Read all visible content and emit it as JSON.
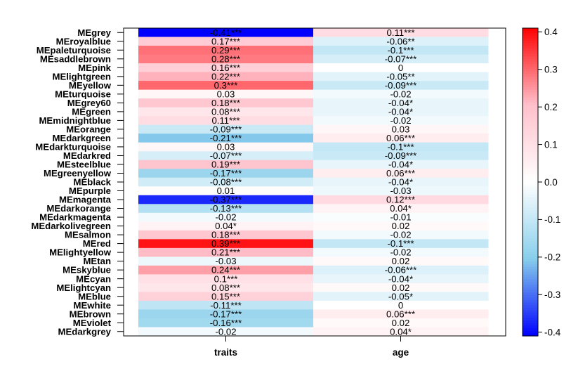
{
  "chart_data": {
    "type": "heatmap",
    "rows": [
      "MEgrey",
      "MEroyalblue",
      "MEpaleturquoise",
      "MEsaddlebrown",
      "MEpink",
      "MElightgreen",
      "MEyellow",
      "MEturquoise",
      "MEgrey60",
      "MEgreen",
      "MEmidnightblue",
      "MEorange",
      "MEdarkgreen",
      "MEdarkturquoise",
      "MEdarkred",
      "MEsteelblue",
      "MEgreenyellow",
      "MEblack",
      "MEpurple",
      "MEmagenta",
      "MEdarkorange",
      "MEdarkmagenta",
      "MEdarkolivegreen",
      "MEsalmon",
      "MEred",
      "MElightyellow",
      "MEtan",
      "MEskyblue",
      "MEcyan",
      "MElightcyan",
      "MEblue",
      "MEwhite",
      "MEbrown",
      "MEviolet",
      "MEdarkgrey"
    ],
    "columns": [
      "traits",
      "age"
    ],
    "values": [
      [
        -0.41,
        0.11
      ],
      [
        0.17,
        -0.06
      ],
      [
        0.29,
        -0.1
      ],
      [
        0.28,
        -0.07
      ],
      [
        0.16,
        0
      ],
      [
        0.22,
        -0.05
      ],
      [
        0.3,
        -0.09
      ],
      [
        0.03,
        -0.02
      ],
      [
        0.18,
        -0.04
      ],
      [
        0.08,
        -0.04
      ],
      [
        0.11,
        -0.02
      ],
      [
        -0.09,
        0.03
      ],
      [
        -0.21,
        0.06
      ],
      [
        0.03,
        -0.1
      ],
      [
        -0.07,
        -0.09
      ],
      [
        0.19,
        -0.04
      ],
      [
        -0.17,
        0.06
      ],
      [
        -0.08,
        -0.04
      ],
      [
        0.01,
        -0.03
      ],
      [
        -0.37,
        0.12
      ],
      [
        -0.13,
        0.04
      ],
      [
        -0.02,
        -0.01
      ],
      [
        0.04,
        0.02
      ],
      [
        0.18,
        -0.02
      ],
      [
        0.39,
        -0.1
      ],
      [
        0.21,
        -0.02
      ],
      [
        -0.03,
        0.02
      ],
      [
        0.24,
        -0.06
      ],
      [
        0.1,
        -0.04
      ],
      [
        0.08,
        0.02
      ],
      [
        0.15,
        -0.05
      ],
      [
        -0.11,
        0
      ],
      [
        -0.17,
        0.06
      ],
      [
        -0.16,
        0.02
      ],
      [
        -0.02,
        0.04
      ]
    ],
    "cell_labels": [
      [
        "-0.41***",
        "0.11***"
      ],
      [
        "0.17***",
        "-0.06**"
      ],
      [
        "0.29***",
        "-0.1***"
      ],
      [
        "0.28***",
        "-0.07***"
      ],
      [
        "0.16***",
        "0"
      ],
      [
        "0.22***",
        "-0.05**"
      ],
      [
        "0.3***",
        "-0.09***"
      ],
      [
        "0.03",
        "-0.02"
      ],
      [
        "0.18***",
        "-0.04*"
      ],
      [
        "0.08***",
        "-0.04*"
      ],
      [
        "0.11***",
        "-0.02"
      ],
      [
        "-0.09***",
        "0.03"
      ],
      [
        "-0.21***",
        "0.06***"
      ],
      [
        "0.03",
        "-0.1***"
      ],
      [
        "-0.07***",
        "-0.09***"
      ],
      [
        "0.19***",
        "-0.04*"
      ],
      [
        "-0.17***",
        "0.06***"
      ],
      [
        "-0.08***",
        "-0.04*"
      ],
      [
        "0.01",
        "-0.03"
      ],
      [
        "-0.37***",
        "0.12***"
      ],
      [
        "-0.13***",
        "0.04*"
      ],
      [
        "-0.02",
        "-0.01"
      ],
      [
        "0.04*",
        "0.02"
      ],
      [
        "0.18***",
        "-0.02"
      ],
      [
        "0.39***",
        "-0.1***"
      ],
      [
        "0.21***",
        "-0.02"
      ],
      [
        "-0.03",
        "0.02"
      ],
      [
        "0.24***",
        "-0.06***"
      ],
      [
        "0.1***",
        "-0.04*"
      ],
      [
        "0.08***",
        "0.02"
      ],
      [
        "0.15***",
        "-0.05*"
      ],
      [
        "-0.11***",
        "0"
      ],
      [
        "-0.17***",
        "0.06***"
      ],
      [
        "-0.16***",
        "0.02"
      ],
      [
        "-0.02",
        "0.04*"
      ]
    ],
    "color_scale": {
      "range": [
        -0.41,
        0.41
      ],
      "low_color": "#0000ff",
      "mid_color": "#ffffff",
      "high_color": "#ff0000",
      "mid_low_color": "#87ceeb",
      "mid_high_color": "#ffc0cb",
      "ticks": [
        0.4,
        0.3,
        0.2,
        0.1,
        0.0,
        -0.1,
        -0.2,
        -0.3,
        -0.4
      ],
      "tick_labels": [
        "0.4",
        "0.3",
        "0.2",
        "0.1",
        "0.0",
        "-0.1",
        "-0.2",
        "-0.3",
        "-0.4"
      ]
    },
    "legend_placement": "right"
  }
}
